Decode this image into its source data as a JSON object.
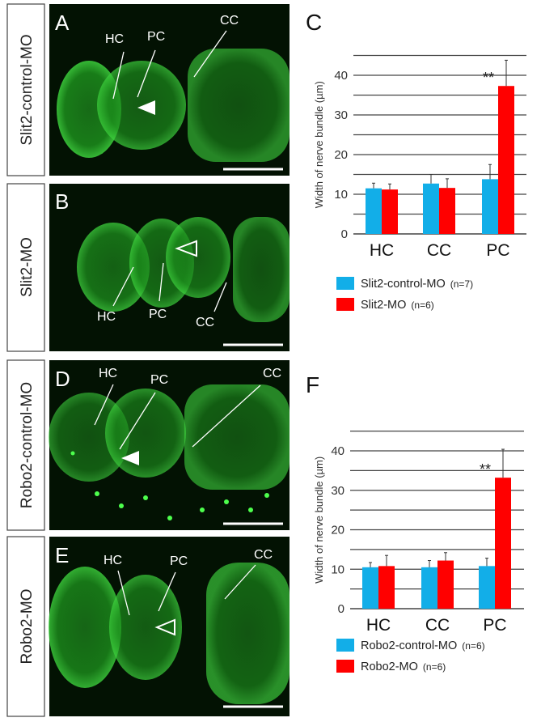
{
  "panels": [
    {
      "letter": "A",
      "side_label": "Slit2-control-MO",
      "annotations": [
        "HC",
        "PC",
        "CC"
      ],
      "arrowhead": "filled"
    },
    {
      "letter": "B",
      "side_label": "Slit2-MO",
      "annotations": [
        "HC",
        "PC",
        "CC"
      ],
      "arrowhead": "open"
    },
    {
      "letter": "D",
      "side_label": "Robo2-control-MO",
      "annotations": [
        "HC",
        "PC",
        "CC"
      ],
      "arrowhead": "filled"
    },
    {
      "letter": "E",
      "side_label": "Robo2-MO",
      "annotations": [
        "HC",
        "PC",
        "CC"
      ],
      "arrowhead": "open"
    }
  ],
  "colors": {
    "control": "#12aee8",
    "mo": "#ff0000",
    "fluor": "#1fd21f"
  },
  "chart_data": [
    {
      "letter": "C",
      "type": "bar",
      "title": "",
      "ylabel": "Width of nerve bundle (µm)",
      "xlabel": "",
      "ylim": [
        0,
        45
      ],
      "yticks": [
        0,
        10,
        20,
        30,
        40
      ],
      "grid": true,
      "categories": [
        "HC",
        "CC",
        "PC"
      ],
      "series": [
        {
          "name": "Slit2-control-MO",
          "n": "(n=7)",
          "values": [
            11.5,
            12.7,
            13.8
          ],
          "errors": [
            1.3,
            2.3,
            3.7
          ]
        },
        {
          "name": "Slit2-MO",
          "n": "(n=6)",
          "values": [
            11.2,
            11.6,
            37.3
          ],
          "errors": [
            1.4,
            2.3,
            6.5
          ]
        }
      ],
      "annotations": [
        {
          "category": "PC",
          "text": "**"
        }
      ],
      "legend": "bottom"
    },
    {
      "letter": "F",
      "type": "bar",
      "title": "",
      "ylabel": "Width of nerve bundle (µm)",
      "xlabel": "",
      "ylim": [
        0,
        45
      ],
      "yticks": [
        0,
        10,
        20,
        30,
        40
      ],
      "grid": true,
      "categories": [
        "HC",
        "CC",
        "PC"
      ],
      "series": [
        {
          "name": "Robo2-control-MO",
          "n": "(n=6)",
          "values": [
            10.5,
            10.5,
            10.8
          ],
          "errors": [
            1.2,
            1.7,
            2.0
          ]
        },
        {
          "name": "Robo2-MO",
          "n": "(n=6)",
          "values": [
            10.8,
            12.2,
            33.2
          ],
          "errors": [
            2.7,
            2.0,
            7.2
          ]
        }
      ],
      "annotations": [
        {
          "category": "PC",
          "text": "**"
        }
      ],
      "legend": "bottom"
    }
  ]
}
